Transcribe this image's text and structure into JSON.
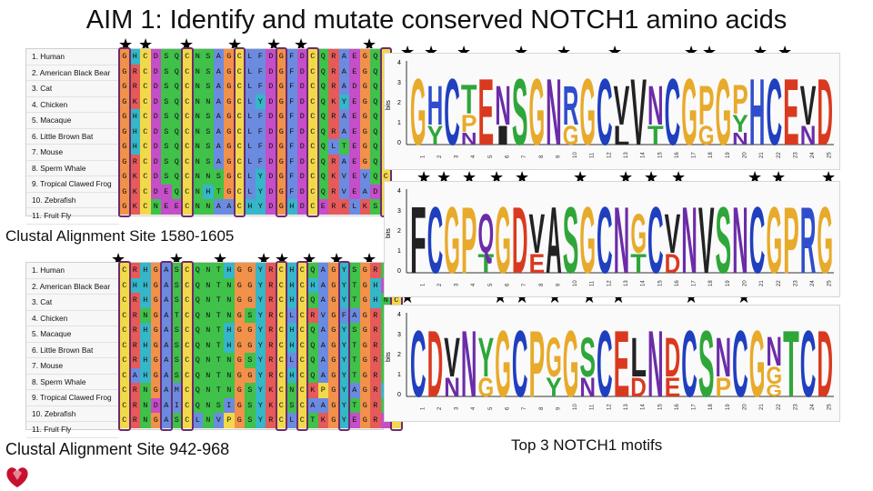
{
  "title": "AIM 1: Identify and mutate conserved NOTCH1 amino acids",
  "species": [
    "1. Human",
    "2. American Black Bear",
    "3. Cat",
    "4. Chicken",
    "5. Macaque",
    "6. Little Brown Bat",
    "7. Mouse",
    "8. Sperm Whale",
    "9. Tropical Clawed Frog",
    "10. Zebrafish",
    "11. Fruit Fly"
  ],
  "alignment1": {
    "caption": "Clustal Alignment Site 1580-1605",
    "rows": [
      "GHCDSQCNSAGCLFDGFDCQRAEGQC",
      "GRCDSQCNSAGCLFDGFDCQRAEGQC",
      "GRCDSQCNSAGCLFDGFDCQRADGQC",
      "GKCDSQCNNAGCLYDGFDCQKYEGQC",
      "GHCDSQCNSAGCLFDGFDCQRAEGQC",
      "GHCDSQCNSAGCLFDGFDCQRAEGQC",
      "GHCDSQCNSAGCLFDGFDCQLTEGQC",
      "GRCDSQCNSAGCLFDGFDCQRAEGQC",
      "GKCDSQCNNSGCLYDGFDCQKVEVQC",
      "GKCDEQCNHTGCLYDGFDCQRVEADC",
      "GKCNEECNNAACHYDGHDCERKLKSC"
    ]
  },
  "alignment2": {
    "caption": "Clustal Alignment Site 942-968",
    "rows": [
      "CRHGASCQNTHGGYRCHCQAGYSGRNC",
      "CHHGASCQNTNGGYRCHCHAGYTGHDC",
      "CRHGASCQNTNGGYRCHCQAGYTGHNC",
      "CRNGATCQNTNGSYRCLCRVGFAGRNC",
      "CRHGASCQNTHGGYRCHCQAGYSGRNC",
      "CRHGASCQNTHGGYRCHCQAGYTGRNC",
      "CRHGASCQNTNGSYRCLCQAGYTGRNC",
      "CAHGASCQNTNGGYRCHCQAGYTGRNC",
      "CRNGAMCQNTNGSYKCNCKPGYAGRHC",
      "CRNDAICQNSIGSYKCSCAAGYTGRNC",
      "CRNGASCLNVPGSYRCLCTKGYEGRDC"
    ]
  },
  "logos_caption": "Top 3 NOTCH1 motifs",
  "logos": [
    {
      "axis_label": "bits",
      "ticks": [
        "4",
        "3",
        "2",
        "1",
        "0"
      ],
      "stacks": [
        "G",
        "HY",
        "C",
        "TPN",
        "E",
        "NI",
        "S",
        "G",
        "N",
        "RG",
        "G",
        "C",
        "VL",
        "V",
        "NT",
        "C",
        "G",
        "PG",
        "G",
        "PYN",
        "H",
        "C",
        "E",
        "VN",
        "D"
      ]
    },
    {
      "axis_label": "bits",
      "ticks": [
        "4",
        "3",
        "2",
        "1",
        "0"
      ],
      "stacks": [
        "F",
        "C",
        "G",
        "P",
        "QT",
        "G",
        "D",
        "VE",
        "A",
        "S",
        "G",
        "C",
        "N",
        "GT",
        "C",
        "VD",
        "N",
        "V",
        "S",
        "N",
        "C",
        "G",
        "P",
        "R",
        "G"
      ]
    },
    {
      "axis_label": "bits",
      "ticks": [
        "4",
        "3",
        "2",
        "1",
        "0"
      ],
      "stacks": [
        "C",
        "D",
        "VN",
        "N",
        "YG",
        "G",
        "C",
        "P",
        "GY",
        "G",
        "SN",
        "C",
        "E",
        "LD",
        "N",
        "DE",
        "C",
        "S",
        "NP",
        "C",
        "G",
        "NGG",
        "T",
        "C",
        "D"
      ]
    }
  ],
  "colors": {
    "G": "#f2914a",
    "P": "#f2d94a",
    "C": "#f2d94a",
    "H": "#35b6c9",
    "K": "#e65a5a",
    "R": "#e65a5a",
    "D": "#c54ec9",
    "E": "#c54ec9",
    "N": "#3fc14a",
    "Q": "#3fc14a",
    "S": "#3fc14a",
    "T": "#3fc14a",
    "A": "#6b8be0",
    "V": "#6b8be0",
    "L": "#6b8be0",
    "I": "#6b8be0",
    "M": "#6b8be0",
    "F": "#6b8be0",
    "W": "#6b8be0",
    "Y": "#35b6c9",
    "box": "#6e2b6e"
  },
  "logo_letter_colors": {
    "G": "#e8aa2a",
    "C": "#1f3fbf",
    "P": "#e8aa2a",
    "D": "#d93a1f",
    "E": "#d93a1f",
    "N": "#6b2ca8",
    "Q": "#6b2ca8",
    "S": "#2fa63a",
    "T": "#2fa63a",
    "Y": "#2fa63a",
    "H": "#2f4dcc",
    "K": "#2f4dcc",
    "R": "#2f4dcc",
    "A": "#222222",
    "V": "#222222",
    "L": "#222222",
    "I": "#222222",
    "M": "#222222",
    "F": "#222222",
    "W": "#222222"
  }
}
